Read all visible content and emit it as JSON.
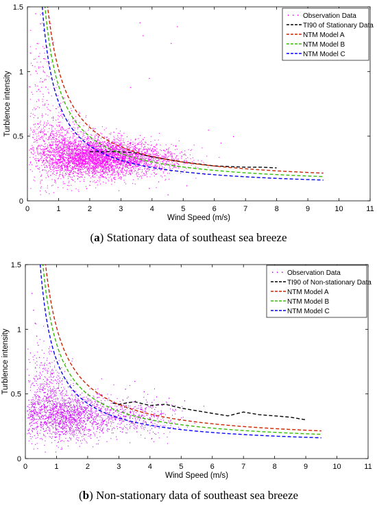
{
  "chart_data": [
    {
      "type": "scatter",
      "caption": {
        "letter": "a",
        "open": "(",
        "close": ")",
        "text": " Stationary data of southeast sea breeze"
      },
      "xlabel": "Wind Speed (m/s)",
      "ylabel": "Turblence intensity",
      "xlim": [
        0,
        11
      ],
      "ylim": [
        0,
        1.5
      ],
      "xticks": [
        "0",
        "1",
        "2",
        "3",
        "4",
        "5",
        "6",
        "7",
        "8",
        "9",
        "10",
        "11"
      ],
      "yticks": [
        "0",
        "0.5",
        "1",
        "1.5"
      ],
      "grid": false,
      "legend_position": "top-right",
      "scatter_series": {
        "name": "Observation Data",
        "color": "#ff00ff",
        "clusters": [
          {
            "x_mean": 2.2,
            "x_sd": 0.8,
            "y_mean": 0.34,
            "y_sd": 0.075,
            "n": 3200
          },
          {
            "x_mean": 1.0,
            "x_sd": 0.45,
            "y_mean": 0.42,
            "y_sd": 0.14,
            "n": 700
          },
          {
            "x_mean": 0.45,
            "x_sd": 0.25,
            "y_mean": 0.75,
            "y_sd": 0.3,
            "n": 180
          },
          {
            "x_mean": 3.8,
            "x_sd": 0.7,
            "y_mean": 0.32,
            "y_sd": 0.06,
            "n": 700
          }
        ],
        "extra_points": [
          [
            0.25,
            1.45
          ],
          [
            0.3,
            1.22
          ],
          [
            0.35,
            1.12
          ],
          [
            0.5,
            1.32
          ],
          [
            0.15,
            1.05
          ],
          [
            3.6,
            1.38
          ],
          [
            3.7,
            1.28
          ],
          [
            4.6,
            1.22
          ],
          [
            4.8,
            1.35
          ],
          [
            3.3,
            0.88
          ],
          [
            3.9,
            0.95
          ],
          [
            5.8,
            0.55
          ],
          [
            6.2,
            0.45
          ],
          [
            6.6,
            0.5
          ],
          [
            4.2,
            0.15
          ],
          [
            3.9,
            0.1
          ],
          [
            4.5,
            0.05
          ],
          [
            5.1,
            0.12
          ]
        ]
      },
      "series": [
        {
          "name": "TI90 of Stationary Data",
          "color": "#000000",
          "x": [
            2.0,
            2.5,
            3.0,
            3.5,
            4.0,
            4.5,
            5.0,
            5.5,
            6.0,
            6.5,
            7.0,
            7.5,
            8.0
          ],
          "y": [
            0.38,
            0.38,
            0.38,
            0.37,
            0.34,
            0.32,
            0.3,
            0.285,
            0.27,
            0.265,
            0.26,
            0.26,
            0.255
          ]
        },
        {
          "name": "NTM Model A",
          "color": "#cc2200",
          "iref": 0.16,
          "x_start": 0.45,
          "x_end": 9.5
        },
        {
          "name": "NTM Model B",
          "color": "#33bb00",
          "iref": 0.14,
          "x_start": 0.4,
          "x_end": 9.5
        },
        {
          "name": "NTM Model C",
          "color": "#0000ee",
          "iref": 0.12,
          "x_start": 0.35,
          "x_end": 9.5
        }
      ]
    },
    {
      "type": "scatter",
      "caption": {
        "letter": "b",
        "open": "(",
        "close": ")",
        "text": " Non-stationary data of southeast sea breeze"
      },
      "xlabel": "Wind Speed (m/s)",
      "ylabel": "Turblence intensity",
      "xlim": [
        0,
        11
      ],
      "ylim": [
        0,
        1.5
      ],
      "xticks": [
        "0",
        "1",
        "2",
        "3",
        "4",
        "5",
        "6",
        "7",
        "8",
        "9",
        "10",
        "11"
      ],
      "yticks": [
        "0",
        "0.5",
        "1",
        "1.5"
      ],
      "grid": false,
      "legend_position": "top-right",
      "scatter_series": {
        "name": "Observation Data",
        "color": "#cc00ff",
        "clusters": [
          {
            "x_mean": 1.4,
            "x_sd": 0.75,
            "y_mean": 0.33,
            "y_sd": 0.09,
            "n": 1500
          },
          {
            "x_mean": 0.7,
            "x_sd": 0.3,
            "y_mean": 0.5,
            "y_sd": 0.17,
            "n": 450
          },
          {
            "x_mean": 3.6,
            "x_sd": 0.7,
            "y_mean": 0.32,
            "y_sd": 0.07,
            "n": 400
          }
        ],
        "extra_points": [
          [
            0.2,
            1.28
          ],
          [
            0.25,
            1.15
          ],
          [
            0.3,
            1.05
          ],
          [
            0.35,
            0.95
          ],
          [
            0.4,
            0.88
          ],
          [
            0.15,
            0.82
          ],
          [
            3.5,
            0.6
          ],
          [
            3.8,
            0.52
          ],
          [
            4.2,
            0.48
          ],
          [
            4.6,
            0.47
          ],
          [
            5.1,
            0.45
          ],
          [
            3.2,
            0.54
          ]
        ]
      },
      "series": [
        {
          "name": "TI90 of Non-stationary Data",
          "color": "#000000",
          "x": [
            2.8,
            3.0,
            3.5,
            4.0,
            4.5,
            5.0,
            5.5,
            6.0,
            6.5,
            7.0,
            7.5,
            8.0,
            8.5,
            9.0
          ],
          "y": [
            0.43,
            0.42,
            0.44,
            0.41,
            0.42,
            0.39,
            0.37,
            0.35,
            0.33,
            0.36,
            0.34,
            0.33,
            0.32,
            0.3
          ]
        },
        {
          "name": "NTM Model A",
          "color": "#cc2200",
          "iref": 0.16,
          "x_start": 0.45,
          "x_end": 9.5
        },
        {
          "name": "NTM Model B",
          "color": "#33bb00",
          "iref": 0.14,
          "x_start": 0.4,
          "x_end": 9.5
        },
        {
          "name": "NTM Model C",
          "color": "#0000ee",
          "iref": 0.12,
          "x_start": 0.35,
          "x_end": 9.5
        }
      ]
    }
  ]
}
